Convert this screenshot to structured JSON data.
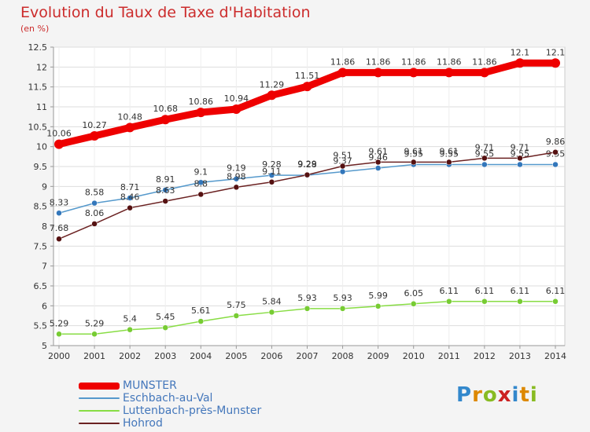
{
  "title": "Evolution du Taux de Taxe d'Habitation",
  "unit_label": "(en %)",
  "logo_text": "Proxiti",
  "chart_data": {
    "type": "line",
    "categories": [
      "2000",
      "2001",
      "2002",
      "2003",
      "2004",
      "2005",
      "2006",
      "2007",
      "2008",
      "2009",
      "2010",
      "2011",
      "2012",
      "2013",
      "2014"
    ],
    "ylim": [
      5,
      12.5
    ],
    "yticks": [
      "5",
      "5.5",
      "6",
      "6.5",
      "7",
      "7.5",
      "8",
      "8.5",
      "9",
      "9.5",
      "10",
      "10.5",
      "11",
      "11.5",
      "12",
      "12.5"
    ],
    "grid": true,
    "series": [
      {
        "name": "MUNSTER",
        "color": "#ee0000",
        "values": [
          10.06,
          10.27,
          10.48,
          10.68,
          10.86,
          10.94,
          11.29,
          11.51,
          11.86,
          11.86,
          11.86,
          11.86,
          11.86,
          12.1,
          12.1
        ],
        "labels": [
          "10.06",
          "10.27",
          "10.48",
          "10.68",
          "10.86",
          "10.94",
          "11.29",
          "11.51",
          "11.86",
          "11.86",
          "11.86",
          "11.86",
          "11.86",
          "12.1",
          "12.1"
        ]
      },
      {
        "name": "Eschbach-au-Val",
        "color": "#5599cc",
        "values": [
          8.33,
          8.58,
          8.71,
          8.91,
          9.1,
          9.19,
          9.28,
          9.28,
          9.37,
          9.46,
          9.55,
          9.55,
          9.55,
          9.55,
          9.55
        ],
        "labels": [
          "8.33",
          "8.58",
          "8.71",
          "8.91",
          "9.1",
          "9.19",
          "9.28",
          "9.28",
          "9.37",
          "9.46",
          "9.55",
          "9.55",
          "9.55",
          "9.55",
          "9.55"
        ]
      },
      {
        "name": "Luttenbach-près-Munster",
        "color": "#88dd44",
        "values": [
          5.29,
          5.29,
          5.4,
          5.45,
          5.61,
          5.75,
          5.84,
          5.93,
          5.93,
          5.99,
          6.05,
          6.11,
          6.11,
          6.11,
          6.11
        ],
        "labels": [
          "5.29",
          "5.29",
          "5.4",
          "5.45",
          "5.61",
          "5.75",
          "5.84",
          "5.93",
          "5.93",
          "5.99",
          "6.05",
          "6.11",
          "6.11",
          "6.11",
          "6.11"
        ]
      },
      {
        "name": "Hohrod",
        "color": "#6b2222",
        "values": [
          7.68,
          8.06,
          8.46,
          8.63,
          8.8,
          8.98,
          9.11,
          9.29,
          9.51,
          9.61,
          9.61,
          9.61,
          9.71,
          9.71,
          9.86
        ],
        "labels": [
          "7.68",
          "8.06",
          "8.46",
          "8.63",
          "8.8",
          "8.98",
          "9.11",
          "9.29",
          "9.51",
          "9.61",
          "9.61",
          "9.61",
          "9.71",
          "9.71",
          "9.86"
        ]
      }
    ]
  }
}
